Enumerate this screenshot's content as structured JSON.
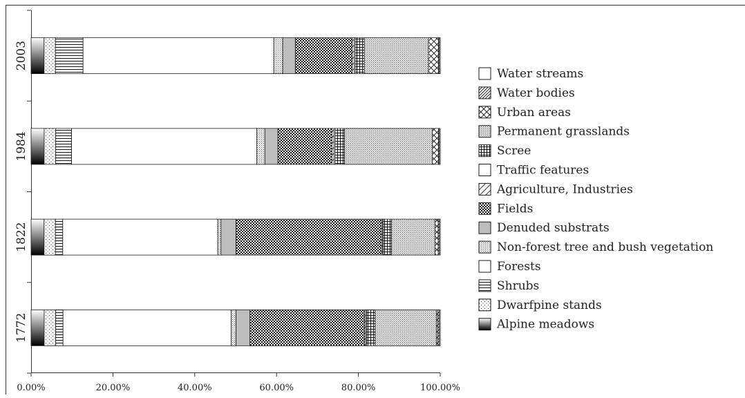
{
  "chart_data": {
    "type": "bar",
    "orientation": "horizontal",
    "stacked": true,
    "percent": true,
    "title": "",
    "xlabel": "",
    "ylabel": "",
    "xlim": [
      0,
      100
    ],
    "x_ticks": [
      "0.00%",
      "20.00%",
      "40.00%",
      "60.00%",
      "80.00%",
      "100.00%"
    ],
    "categories": [
      "1772",
      "1822",
      "1984",
      "2003"
    ],
    "grid": false,
    "legend_position": "right",
    "series": [
      {
        "name": "Alpine meadows",
        "pattern": "gradient",
        "values": [
          3.2,
          3.2,
          3.2,
          3.2
        ]
      },
      {
        "name": "Dwarfpine stands",
        "pattern": "dots",
        "values": [
          2.8,
          2.8,
          2.8,
          2.8
        ]
      },
      {
        "name": "Shrubs",
        "pattern": "hlines",
        "values": [
          1.8,
          1.8,
          3.9,
          6.8
        ]
      },
      {
        "name": "Forests",
        "pattern": "blank",
        "values": [
          41.1,
          38.2,
          45.3,
          47.0
        ]
      },
      {
        "name": "Non-forest tree and bush vegetation",
        "pattern": "dense-dots",
        "values": [
          1.2,
          0.8,
          2.0,
          2.2
        ]
      },
      {
        "name": "Denuded substrats",
        "pattern": "gray",
        "values": [
          3.4,
          3.7,
          3.2,
          3.1
        ]
      },
      {
        "name": "Fields",
        "pattern": "checker",
        "values": [
          28.0,
          35.8,
          13.2,
          14.0
        ]
      },
      {
        "name": "Agriculture, Industries",
        "pattern": "diag-light",
        "values": [
          0.3,
          0.3,
          0.5,
          0.5
        ]
      },
      {
        "name": "Traffic features",
        "pattern": "blank",
        "values": [
          0.2,
          0.2,
          0.3,
          0.3
        ]
      },
      {
        "name": "Scree",
        "pattern": "grid",
        "values": [
          2.1,
          2.0,
          2.3,
          2.2
        ]
      },
      {
        "name": "Permanent grasslands",
        "pattern": "dense-gray",
        "values": [
          15.0,
          10.7,
          21.5,
          15.8
        ]
      },
      {
        "name": "Urban areas",
        "pattern": "crosshatch",
        "values": [
          0.3,
          0.8,
          1.5,
          2.5
        ]
      },
      {
        "name": "Water bodies",
        "pattern": "diag-dense",
        "values": [
          0.4,
          0.3,
          0.2,
          0.2
        ]
      },
      {
        "name": "Water streams",
        "pattern": "blank",
        "values": [
          0.2,
          0.2,
          0.2,
          0.2
        ]
      }
    ],
    "legend_order": [
      "Water streams",
      "Water bodies",
      "Urban areas",
      "Permanent grasslands",
      "Scree",
      "Traffic features",
      "Agriculture, Industries",
      "Fields",
      "Denuded substrats",
      "Non-forest tree and bush vegetation",
      "Forests",
      "Shrubs",
      "Dwarfpine stands",
      "Alpine meadows"
    ]
  },
  "colors": {
    "outline": "#1a1a1a",
    "gray_fill": "#bdbdbd",
    "background": "#ffffff"
  }
}
